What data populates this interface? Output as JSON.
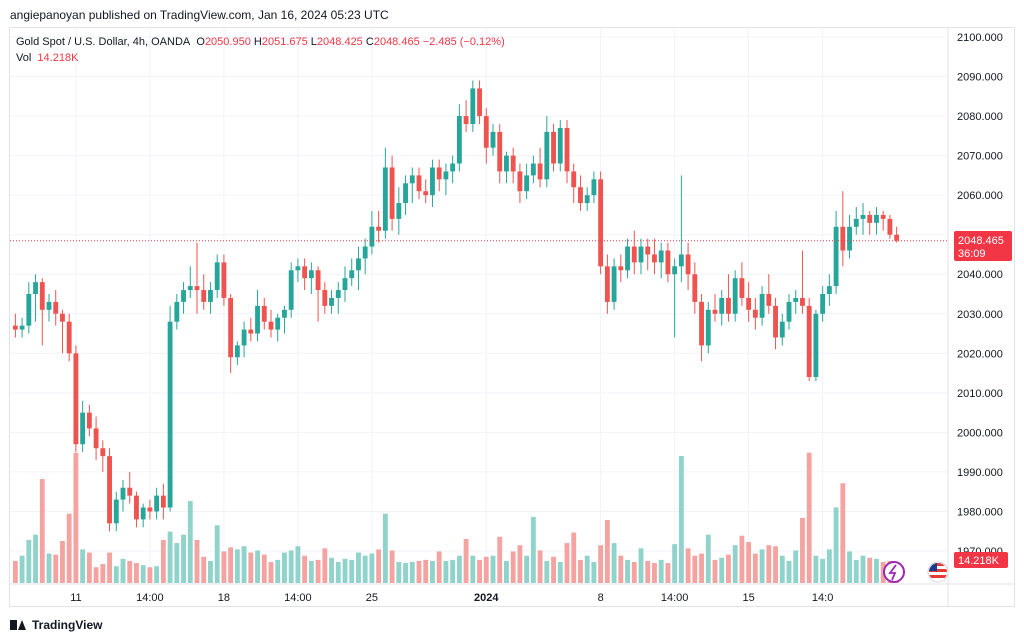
{
  "header": {
    "publisher_line": "angiepanoyan published on TradingView.com, Jan 16, 2024 05:23 UTC"
  },
  "legend": {
    "symbol": "Gold Spot / U.S. Dollar, 4h, OANDA",
    "o_label": "O",
    "o_value": "2050.950",
    "h_label": "H",
    "h_value": "2051.675",
    "l_label": "L",
    "l_value": "2048.425",
    "c_label": "C",
    "c_value": "2048.465",
    "change": "−2.485 (−0.12%)",
    "vol_label": "Vol",
    "vol_value": "14.218K"
  },
  "price_tag": {
    "price": "2048.465",
    "countdown": "36:09"
  },
  "volume_tag": "14.218K",
  "footer": {
    "brand": "TradingView"
  },
  "colors": {
    "up": "#26a69a",
    "down": "#ef5350",
    "vol_up": "#8fd3ca",
    "vol_down": "#f4a3a1",
    "last_line": "#f23645"
  },
  "icons": [
    "tradingview-logo-icon",
    "clock-purple-icon",
    "us-flag-icon"
  ],
  "chart_data": {
    "type": "candlestick",
    "y_ticks": [
      "2100.000",
      "2090.000",
      "2080.000",
      "2070.000",
      "2060.000",
      "2050.000",
      "2040.000",
      "2030.000",
      "2020.000",
      "2010.000",
      "2000.000",
      "1990.000",
      "1980.000",
      "1970.000"
    ],
    "ylim": [
      1963,
      2104
    ],
    "x_ticks": [
      {
        "label": "11",
        "index": 9,
        "bold": false
      },
      {
        "label": "14:00",
        "index": 20,
        "bold": false
      },
      {
        "label": "18",
        "index": 31,
        "bold": false
      },
      {
        "label": "14:00",
        "index": 42,
        "bold": false
      },
      {
        "label": "25",
        "index": 53,
        "bold": false
      },
      {
        "label": "2024",
        "index": 70,
        "bold": true
      },
      {
        "label": "8",
        "index": 87,
        "bold": false
      },
      {
        "label": "14:00",
        "index": 98,
        "bold": false
      },
      {
        "label": "15",
        "index": 109,
        "bold": false
      },
      {
        "label": "14:0",
        "index": 120,
        "bold": false
      }
    ],
    "last_price": 2048.465,
    "candles": [
      {
        "o": 2027,
        "h": 2030,
        "l": 2024,
        "c": 2026,
        "v": 2.1
      },
      {
        "o": 2026,
        "h": 2029,
        "l": 2024,
        "c": 2027,
        "v": 2.6
      },
      {
        "o": 2027,
        "h": 2038,
        "l": 2025,
        "c": 2035,
        "v": 4.1
      },
      {
        "o": 2035,
        "h": 2040,
        "l": 2028,
        "c": 2038,
        "v": 4.6
      },
      {
        "o": 2038,
        "h": 2039,
        "l": 2022,
        "c": 2031,
        "v": 9.9
      },
      {
        "o": 2031,
        "h": 2035,
        "l": 2028,
        "c": 2033,
        "v": 2.8
      },
      {
        "o": 2033,
        "h": 2036,
        "l": 2027,
        "c": 2030,
        "v": 2.7
      },
      {
        "o": 2030,
        "h": 2031,
        "l": 2020,
        "c": 2028,
        "v": 4.0
      },
      {
        "o": 2028,
        "h": 2030,
        "l": 2018,
        "c": 2020,
        "v": 6.6
      },
      {
        "o": 2020,
        "h": 2022,
        "l": 1995,
        "c": 1997,
        "v": 12.4
      },
      {
        "o": 1997,
        "h": 2008,
        "l": 1995,
        "c": 2005,
        "v": 3.2
      },
      {
        "o": 2005,
        "h": 2007,
        "l": 1999,
        "c": 2001,
        "v": 2.9
      },
      {
        "o": 2001,
        "h": 2004,
        "l": 1993,
        "c": 1996,
        "v": 1.5
      },
      {
        "o": 1996,
        "h": 1998,
        "l": 1990,
        "c": 1994,
        "v": 1.8
      },
      {
        "o": 1994,
        "h": 1996,
        "l": 1975,
        "c": 1977,
        "v": 2.9
      },
      {
        "o": 1977,
        "h": 1985,
        "l": 1975,
        "c": 1983,
        "v": 1.6
      },
      {
        "o": 1983,
        "h": 1988,
        "l": 1980,
        "c": 1986,
        "v": 2.3
      },
      {
        "o": 1986,
        "h": 1990,
        "l": 1982,
        "c": 1984,
        "v": 2.1
      },
      {
        "o": 1984,
        "h": 1985,
        "l": 1976,
        "c": 1978,
        "v": 1.9
      },
      {
        "o": 1978,
        "h": 1982,
        "l": 1976,
        "c": 1981,
        "v": 1.7
      },
      {
        "o": 1981,
        "h": 1983,
        "l": 1978,
        "c": 1980,
        "v": 1.5
      },
      {
        "o": 1980,
        "h": 1986,
        "l": 1978,
        "c": 1984,
        "v": 1.6
      },
      {
        "o": 1984,
        "h": 1987,
        "l": 1978,
        "c": 1981,
        "v": 4.1
      },
      {
        "o": 1981,
        "h": 2032,
        "l": 1980,
        "c": 2028,
        "v": 4.9
      },
      {
        "o": 2028,
        "h": 2035,
        "l": 2026,
        "c": 2033,
        "v": 3.8
      },
      {
        "o": 2033,
        "h": 2038,
        "l": 2030,
        "c": 2036,
        "v": 4.6
      },
      {
        "o": 2036,
        "h": 2042,
        "l": 2034,
        "c": 2037,
        "v": 7.8
      },
      {
        "o": 2037,
        "h": 2048,
        "l": 2030,
        "c": 2036,
        "v": 4.1
      },
      {
        "o": 2036,
        "h": 2040,
        "l": 2031,
        "c": 2033,
        "v": 2.5
      },
      {
        "o": 2033,
        "h": 2038,
        "l": 2030,
        "c": 2036,
        "v": 2.1
      },
      {
        "o": 2036,
        "h": 2045,
        "l": 2034,
        "c": 2043,
        "v": 5.5
      },
      {
        "o": 2043,
        "h": 2045,
        "l": 2032,
        "c": 2034,
        "v": 3.0
      },
      {
        "o": 2034,
        "h": 2035,
        "l": 2015,
        "c": 2019,
        "v": 3.4
      },
      {
        "o": 2019,
        "h": 2023,
        "l": 2017,
        "c": 2022,
        "v": 3.2
      },
      {
        "o": 2022,
        "h": 2028,
        "l": 2019,
        "c": 2026,
        "v": 3.5
      },
      {
        "o": 2026,
        "h": 2029,
        "l": 2023,
        "c": 2025,
        "v": 2.9
      },
      {
        "o": 2025,
        "h": 2036,
        "l": 2023,
        "c": 2032,
        "v": 3.1
      },
      {
        "o": 2032,
        "h": 2034,
        "l": 2026,
        "c": 2028,
        "v": 2.7
      },
      {
        "o": 2028,
        "h": 2031,
        "l": 2024,
        "c": 2026,
        "v": 2.0
      },
      {
        "o": 2026,
        "h": 2030,
        "l": 2023,
        "c": 2029,
        "v": 2.2
      },
      {
        "o": 2029,
        "h": 2032,
        "l": 2025,
        "c": 2031,
        "v": 2.9
      },
      {
        "o": 2031,
        "h": 2043,
        "l": 2029,
        "c": 2041,
        "v": 3.1
      },
      {
        "o": 2041,
        "h": 2044,
        "l": 2038,
        "c": 2042,
        "v": 3.5
      },
      {
        "o": 2042,
        "h": 2044,
        "l": 2036,
        "c": 2039,
        "v": 2.6
      },
      {
        "o": 2039,
        "h": 2043,
        "l": 2035,
        "c": 2041,
        "v": 2.1
      },
      {
        "o": 2041,
        "h": 2042,
        "l": 2028,
        "c": 2036,
        "v": 2.2
      },
      {
        "o": 2036,
        "h": 2038,
        "l": 2030,
        "c": 2032,
        "v": 3.3
      },
      {
        "o": 2032,
        "h": 2036,
        "l": 2030,
        "c": 2034,
        "v": 2.4
      },
      {
        "o": 2034,
        "h": 2038,
        "l": 2030,
        "c": 2036,
        "v": 2.0
      },
      {
        "o": 2036,
        "h": 2042,
        "l": 2033,
        "c": 2039,
        "v": 2.3
      },
      {
        "o": 2039,
        "h": 2044,
        "l": 2037,
        "c": 2041,
        "v": 2.2
      },
      {
        "o": 2041,
        "h": 2047,
        "l": 2036,
        "c": 2044,
        "v": 2.9
      },
      {
        "o": 2044,
        "h": 2049,
        "l": 2040,
        "c": 2047,
        "v": 2.6
      },
      {
        "o": 2047,
        "h": 2056,
        "l": 2045,
        "c": 2052,
        "v": 2.8
      },
      {
        "o": 2052,
        "h": 2056,
        "l": 2048,
        "c": 2051,
        "v": 3.2
      },
      {
        "o": 2051,
        "h": 2072,
        "l": 2049,
        "c": 2067,
        "v": 6.6
      },
      {
        "o": 2067,
        "h": 2070,
        "l": 2051,
        "c": 2054,
        "v": 3.1
      },
      {
        "o": 2054,
        "h": 2062,
        "l": 2050,
        "c": 2058,
        "v": 2.0
      },
      {
        "o": 2058,
        "h": 2065,
        "l": 2055,
        "c": 2063,
        "v": 1.9
      },
      {
        "o": 2063,
        "h": 2067,
        "l": 2058,
        "c": 2065,
        "v": 2.0
      },
      {
        "o": 2065,
        "h": 2067,
        "l": 2059,
        "c": 2061,
        "v": 2.1
      },
      {
        "o": 2061,
        "h": 2064,
        "l": 2058,
        "c": 2060,
        "v": 2.2
      },
      {
        "o": 2060,
        "h": 2069,
        "l": 2057,
        "c": 2067,
        "v": 2.1
      },
      {
        "o": 2067,
        "h": 2069,
        "l": 2061,
        "c": 2064,
        "v": 3.0
      },
      {
        "o": 2064,
        "h": 2068,
        "l": 2060,
        "c": 2066,
        "v": 2.1
      },
      {
        "o": 2066,
        "h": 2070,
        "l": 2063,
        "c": 2068,
        "v": 2.2
      },
      {
        "o": 2068,
        "h": 2083,
        "l": 2066,
        "c": 2080,
        "v": 2.6
      },
      {
        "o": 2080,
        "h": 2084,
        "l": 2076,
        "c": 2078,
        "v": 4.2
      },
      {
        "o": 2078,
        "h": 2089,
        "l": 2076,
        "c": 2087,
        "v": 2.6
      },
      {
        "o": 2087,
        "h": 2089,
        "l": 2078,
        "c": 2080,
        "v": 2.2
      },
      {
        "o": 2080,
        "h": 2082,
        "l": 2068,
        "c": 2072,
        "v": 2.5
      },
      {
        "o": 2072,
        "h": 2078,
        "l": 2070,
        "c": 2076,
        "v": 2.6
      },
      {
        "o": 2076,
        "h": 2078,
        "l": 2063,
        "c": 2066,
        "v": 4.4
      },
      {
        "o": 2066,
        "h": 2071,
        "l": 2063,
        "c": 2070,
        "v": 2.1
      },
      {
        "o": 2070,
        "h": 2072,
        "l": 2063,
        "c": 2066,
        "v": 3.0
      },
      {
        "o": 2066,
        "h": 2068,
        "l": 2058,
        "c": 2061,
        "v": 3.6
      },
      {
        "o": 2061,
        "h": 2068,
        "l": 2059,
        "c": 2065,
        "v": 2.6
      },
      {
        "o": 2065,
        "h": 2070,
        "l": 2063,
        "c": 2068,
        "v": 6.3
      },
      {
        "o": 2068,
        "h": 2072,
        "l": 2062,
        "c": 2064,
        "v": 3.1
      },
      {
        "o": 2064,
        "h": 2080,
        "l": 2062,
        "c": 2076,
        "v": 2.1
      },
      {
        "o": 2076,
        "h": 2078,
        "l": 2066,
        "c": 2068,
        "v": 2.5
      },
      {
        "o": 2068,
        "h": 2079,
        "l": 2066,
        "c": 2077,
        "v": 2.0
      },
      {
        "o": 2077,
        "h": 2079,
        "l": 2063,
        "c": 2066,
        "v": 3.8
      },
      {
        "o": 2066,
        "h": 2068,
        "l": 2058,
        "c": 2062,
        "v": 4.8
      },
      {
        "o": 2062,
        "h": 2065,
        "l": 2056,
        "c": 2058,
        "v": 2.2
      },
      {
        "o": 2058,
        "h": 2062,
        "l": 2056,
        "c": 2060,
        "v": 2.6
      },
      {
        "o": 2060,
        "h": 2066,
        "l": 2058,
        "c": 2064,
        "v": 2.0
      },
      {
        "o": 2064,
        "h": 2066,
        "l": 2040,
        "c": 2042,
        "v": 3.6
      },
      {
        "o": 2042,
        "h": 2045,
        "l": 2030,
        "c": 2033,
        "v": 6.0
      },
      {
        "o": 2033,
        "h": 2044,
        "l": 2031,
        "c": 2042,
        "v": 3.8
      },
      {
        "o": 2042,
        "h": 2045,
        "l": 2038,
        "c": 2041,
        "v": 2.6
      },
      {
        "o": 2041,
        "h": 2049,
        "l": 2039,
        "c": 2047,
        "v": 2.2
      },
      {
        "o": 2047,
        "h": 2051,
        "l": 2040,
        "c": 2043,
        "v": 2.0
      },
      {
        "o": 2043,
        "h": 2049,
        "l": 2040,
        "c": 2047,
        "v": 3.3
      },
      {
        "o": 2047,
        "h": 2049,
        "l": 2041,
        "c": 2045,
        "v": 2.1
      },
      {
        "o": 2045,
        "h": 2049,
        "l": 2040,
        "c": 2043,
        "v": 1.9
      },
      {
        "o": 2043,
        "h": 2048,
        "l": 2039,
        "c": 2046,
        "v": 2.2
      },
      {
        "o": 2046,
        "h": 2048,
        "l": 2038,
        "c": 2040,
        "v": 1.9
      },
      {
        "o": 2040,
        "h": 2044,
        "l": 2024,
        "c": 2042,
        "v": 3.7
      },
      {
        "o": 2042,
        "h": 2065,
        "l": 2038,
        "c": 2045,
        "v": 12.1
      },
      {
        "o": 2045,
        "h": 2048,
        "l": 2036,
        "c": 2040,
        "v": 3.3
      },
      {
        "o": 2040,
        "h": 2043,
        "l": 2030,
        "c": 2033,
        "v": 2.6
      },
      {
        "o": 2033,
        "h": 2035,
        "l": 2018,
        "c": 2022,
        "v": 2.8
      },
      {
        "o": 2022,
        "h": 2033,
        "l": 2020,
        "c": 2031,
        "v": 4.6
      },
      {
        "o": 2031,
        "h": 2035,
        "l": 2028,
        "c": 2030,
        "v": 2.2
      },
      {
        "o": 2030,
        "h": 2036,
        "l": 2027,
        "c": 2034,
        "v": 2.4
      },
      {
        "o": 2034,
        "h": 2040,
        "l": 2028,
        "c": 2030,
        "v": 2.7
      },
      {
        "o": 2030,
        "h": 2041,
        "l": 2028,
        "c": 2039,
        "v": 3.6
      },
      {
        "o": 2039,
        "h": 2043,
        "l": 2032,
        "c": 2034,
        "v": 4.5
      },
      {
        "o": 2034,
        "h": 2038,
        "l": 2028,
        "c": 2031,
        "v": 3.9
      },
      {
        "o": 2031,
        "h": 2034,
        "l": 2026,
        "c": 2029,
        "v": 2.8
      },
      {
        "o": 2029,
        "h": 2037,
        "l": 2027,
        "c": 2035,
        "v": 3.2
      },
      {
        "o": 2035,
        "h": 2040,
        "l": 2030,
        "c": 2032,
        "v": 3.6
      },
      {
        "o": 2032,
        "h": 2034,
        "l": 2021,
        "c": 2024,
        "v": 3.5
      },
      {
        "o": 2024,
        "h": 2030,
        "l": 2022,
        "c": 2028,
        "v": 2.6
      },
      {
        "o": 2028,
        "h": 2035,
        "l": 2026,
        "c": 2033,
        "v": 2.1
      },
      {
        "o": 2033,
        "h": 2036,
        "l": 2030,
        "c": 2034,
        "v": 3.1
      },
      {
        "o": 2034,
        "h": 2046,
        "l": 2030,
        "c": 2032,
        "v": 6.2
      },
      {
        "o": 2032,
        "h": 2034,
        "l": 2013,
        "c": 2014,
        "v": 12.4
      },
      {
        "o": 2014,
        "h": 2031,
        "l": 2013,
        "c": 2030,
        "v": 2.6
      },
      {
        "o": 2030,
        "h": 2037,
        "l": 2028,
        "c": 2035,
        "v": 2.3
      },
      {
        "o": 2035,
        "h": 2040,
        "l": 2032,
        "c": 2037,
        "v": 3.2
      },
      {
        "o": 2037,
        "h": 2056,
        "l": 2035,
        "c": 2052,
        "v": 7.2
      },
      {
        "o": 2052,
        "h": 2061,
        "l": 2042,
        "c": 2046,
        "v": 9.5
      },
      {
        "o": 2046,
        "h": 2055,
        "l": 2044,
        "c": 2052,
        "v": 3.0
      },
      {
        "o": 2052,
        "h": 2057,
        "l": 2050,
        "c": 2054,
        "v": 2.2
      },
      {
        "o": 2054,
        "h": 2058,
        "l": 2050,
        "c": 2055,
        "v": 2.6
      },
      {
        "o": 2055,
        "h": 2056,
        "l": 2050,
        "c": 2053,
        "v": 2.4
      },
      {
        "o": 2053,
        "h": 2057,
        "l": 2050,
        "c": 2055,
        "v": 2.3
      },
      {
        "o": 2055,
        "h": 2056,
        "l": 2051,
        "c": 2054,
        "v": 2.0
      },
      {
        "o": 2054,
        "h": 2055,
        "l": 2049,
        "c": 2050,
        "v": 2.1
      },
      {
        "o": 2050,
        "h": 2052,
        "l": 2048,
        "c": 2048.5,
        "v": 1.4
      }
    ]
  }
}
